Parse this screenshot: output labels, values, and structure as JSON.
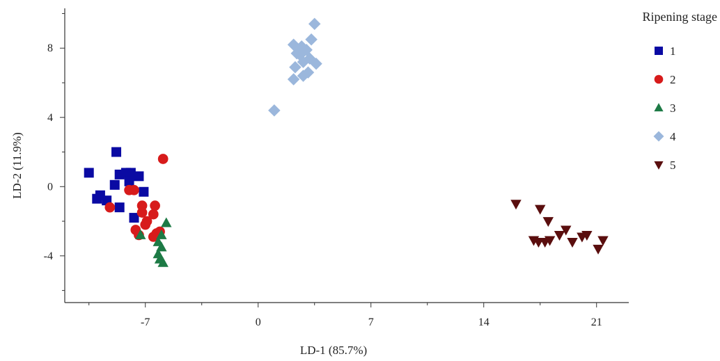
{
  "chart_data": {
    "type": "scatter",
    "xlabel": "LD-1 (85.7%)",
    "ylabel": "LD-2 (11.9%)",
    "xlim": [
      -12,
      23
    ],
    "ylim": [
      -6.7,
      10.3
    ],
    "xticks": [
      -7,
      0,
      7,
      14,
      21
    ],
    "yticks": [
      -4,
      0,
      4,
      8
    ],
    "xtick_labels": [
      "-7",
      "0",
      "7",
      "14",
      "21"
    ],
    "ytick_labels": [
      "-4",
      "0",
      "4",
      "8"
    ],
    "legend_title": "Ripening stage",
    "legend_position": "top-right",
    "grid": false,
    "series": [
      {
        "name": "1",
        "marker": "square",
        "color": "#0a0aa3",
        "x": [
          -10.5,
          -8.8,
          -8.6,
          -8.2,
          -7.9,
          -7.4,
          -8.9,
          -9.4,
          -8.0,
          -7.1,
          -7.7,
          -9.8,
          -10.0,
          -8.6
        ],
        "y": [
          0.8,
          2.0,
          0.7,
          0.8,
          0.8,
          0.6,
          0.1,
          -0.8,
          0.3,
          -0.3,
          -1.8,
          -0.5,
          -0.7,
          -1.2
        ]
      },
      {
        "name": "2",
        "marker": "circle",
        "color": "#d71b1b",
        "x": [
          -5.9,
          -8.0,
          -7.7,
          -9.2,
          -7.2,
          -7.2,
          -6.9,
          -6.5,
          -6.4,
          -6.3,
          -7.0,
          -7.6,
          -7.4,
          -6.1,
          -6.5
        ],
        "y": [
          1.6,
          -0.2,
          -0.2,
          -1.2,
          -1.1,
          -1.5,
          -2.0,
          -1.6,
          -1.1,
          -2.7,
          -2.2,
          -2.5,
          -2.8,
          -2.6,
          -2.9
        ]
      },
      {
        "name": "3",
        "marker": "triangle-up",
        "color": "#1d7a45",
        "x": [
          -7.3,
          -5.7,
          -6.0,
          -6.2,
          -6.0,
          -6.2,
          -6.1,
          -5.9
        ],
        "y": [
          -2.8,
          -2.1,
          -2.8,
          -3.2,
          -3.5,
          -3.9,
          -4.2,
          -4.4
        ]
      },
      {
        "name": "4",
        "marker": "diamond",
        "color": "#9bb7dc",
        "x": [
          3.5,
          2.2,
          2.7,
          3.3,
          2.4,
          3.0,
          2.6,
          3.2,
          3.6,
          2.3,
          2.8,
          3.1,
          2.2,
          2.8,
          1.0
        ],
        "y": [
          9.4,
          8.2,
          8.1,
          8.5,
          7.7,
          7.9,
          7.6,
          7.4,
          7.1,
          6.9,
          7.2,
          6.6,
          6.2,
          6.4,
          4.4
        ]
      },
      {
        "name": "5",
        "marker": "triangle-down",
        "color": "#5a0e0e",
        "x": [
          16.0,
          17.5,
          18.0,
          19.1,
          20.1,
          20.4,
          18.7,
          19.5,
          17.1,
          17.4,
          17.8,
          18.1,
          21.4,
          21.1
        ],
        "y": [
          -1.0,
          -1.3,
          -2.0,
          -2.5,
          -2.9,
          -2.8,
          -2.8,
          -3.2,
          -3.1,
          -3.2,
          -3.2,
          -3.1,
          -3.1,
          -3.6
        ]
      }
    ]
  }
}
